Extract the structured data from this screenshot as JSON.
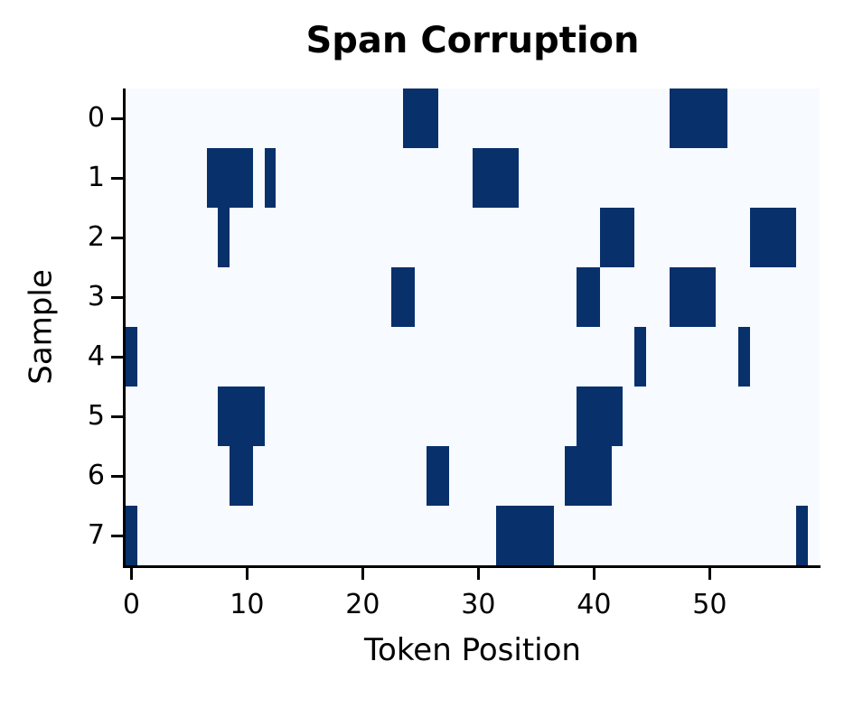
{
  "colors": {
    "corrupted": "#08306b",
    "clean": "#f7fbff",
    "axis": "#000000",
    "text": "#000000",
    "page_background": "#ffffff"
  },
  "chart_data": {
    "type": "heatmap",
    "title": "Span Corruption",
    "xlabel": "Token Position",
    "ylabel": "Sample",
    "n_rows": 8,
    "n_cols": 60,
    "x_range": [
      0,
      59
    ],
    "x_ticks": [
      0,
      10,
      20,
      30,
      40,
      50
    ],
    "y_ticks": [
      0,
      1,
      2,
      3,
      4,
      5,
      6,
      7
    ],
    "grid": false,
    "legend": "none",
    "value_semantics": {
      "1": "corrupted (masked) token span",
      "0": "clean token"
    },
    "rows": [
      {
        "sample": 0,
        "spans": [
          [
            24,
            26
          ],
          [
            47,
            51
          ]
        ]
      },
      {
        "sample": 1,
        "spans": [
          [
            7,
            10
          ],
          [
            12,
            12
          ],
          [
            30,
            33
          ]
        ]
      },
      {
        "sample": 2,
        "spans": [
          [
            8,
            8
          ],
          [
            41,
            43
          ],
          [
            54,
            57
          ]
        ]
      },
      {
        "sample": 3,
        "spans": [
          [
            23,
            24
          ],
          [
            39,
            40
          ],
          [
            47,
            50
          ]
        ]
      },
      {
        "sample": 4,
        "spans": [
          [
            0,
            0
          ],
          [
            44,
            44
          ],
          [
            53,
            53
          ]
        ]
      },
      {
        "sample": 5,
        "spans": [
          [
            8,
            11
          ],
          [
            39,
            42
          ]
        ]
      },
      {
        "sample": 6,
        "spans": [
          [
            9,
            10
          ],
          [
            26,
            27
          ],
          [
            38,
            41
          ]
        ]
      },
      {
        "sample": 7,
        "spans": [
          [
            0,
            0
          ],
          [
            32,
            36
          ],
          [
            58,
            58
          ]
        ]
      }
    ]
  }
}
